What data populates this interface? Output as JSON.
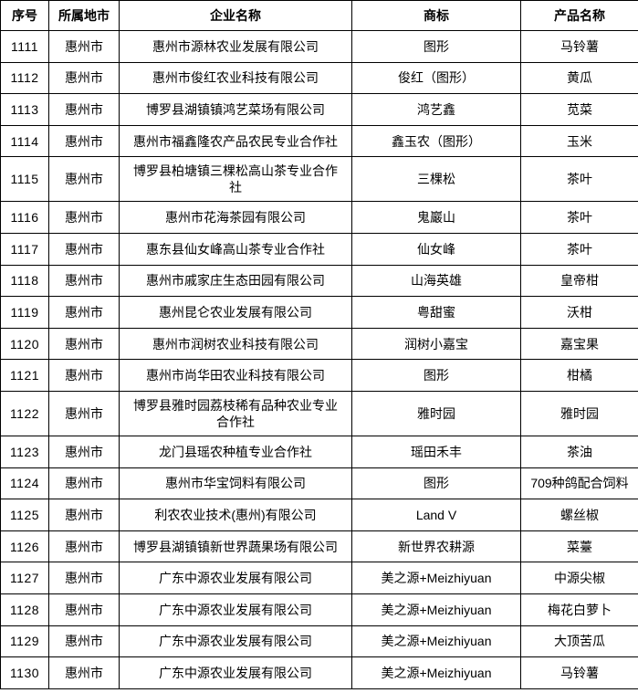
{
  "table": {
    "columns": [
      {
        "key": "no",
        "label": "序号"
      },
      {
        "key": "city",
        "label": "所属地市"
      },
      {
        "key": "company",
        "label": "企业名称"
      },
      {
        "key": "trademark",
        "label": "商标"
      },
      {
        "key": "product",
        "label": "产品名称"
      }
    ],
    "rows": [
      {
        "no": "1111",
        "city": "惠州市",
        "company": "惠州市源林农业发展有限公司",
        "trademark": "图形",
        "product": "马铃薯"
      },
      {
        "no": "1112",
        "city": "惠州市",
        "company": "惠州市俊红农业科技有限公司",
        "trademark": "俊红（图形）",
        "product": "黄瓜"
      },
      {
        "no": "1113",
        "city": "惠州市",
        "company": "博罗县湖镇镇鸿艺菜场有限公司",
        "trademark": "鸿艺鑫",
        "product": "苋菜"
      },
      {
        "no": "1114",
        "city": "惠州市",
        "company": "惠州市福鑫隆农产品农民专业合作社",
        "trademark": "鑫玉农（图形）",
        "product": "玉米"
      },
      {
        "no": "1115",
        "city": "惠州市",
        "company": "博罗县柏塘镇三棵松高山茶专业合作社",
        "trademark": "三棵松",
        "product": "茶叶"
      },
      {
        "no": "1116",
        "city": "惠州市",
        "company": "惠州市花海茶园有限公司",
        "trademark": "鬼巖山",
        "product": "茶叶"
      },
      {
        "no": "1117",
        "city": "惠州市",
        "company": "惠东县仙女峰高山茶专业合作社",
        "trademark": "仙女峰",
        "product": "茶叶"
      },
      {
        "no": "1118",
        "city": "惠州市",
        "company": "惠州市戚家庄生态田园有限公司",
        "trademark": "山海英雄",
        "product": "皇帝柑"
      },
      {
        "no": "1119",
        "city": "惠州市",
        "company": "惠州昆仑农业发展有限公司",
        "trademark": "粤甜蜜",
        "product": "沃柑"
      },
      {
        "no": "1120",
        "city": "惠州市",
        "company": "惠州市润树农业科技有限公司",
        "trademark": "润树小嘉宝",
        "product": "嘉宝果"
      },
      {
        "no": "1121",
        "city": "惠州市",
        "company": "惠州市尚华田农业科技有限公司",
        "trademark": "图形",
        "product": "柑橘"
      },
      {
        "no": "1122",
        "city": "惠州市",
        "company": "博罗县雅时园荔枝稀有品种农业专业合作社",
        "trademark": "雅时园",
        "product": "雅时园"
      },
      {
        "no": "1123",
        "city": "惠州市",
        "company": "龙门县瑶农种植专业合作社",
        "trademark": "瑶田禾丰",
        "product": "茶油"
      },
      {
        "no": "1124",
        "city": "惠州市",
        "company": "惠州市华宝饲料有限公司",
        "trademark": "图形",
        "product": "709种鸽配合饲料"
      },
      {
        "no": "1125",
        "city": "惠州市",
        "company": "利农农业技术(惠州)有限公司",
        "trademark": "Land V",
        "product": "螺丝椒"
      },
      {
        "no": "1126",
        "city": "惠州市",
        "company": "博罗县湖镇镇新世界蔬果场有限公司",
        "trademark": "新世界农耕源",
        "product": "菜薹"
      },
      {
        "no": "1127",
        "city": "惠州市",
        "company": "广东中源农业发展有限公司",
        "trademark": "美之源+Meizhiyuan",
        "product": "中源尖椒"
      },
      {
        "no": "1128",
        "city": "惠州市",
        "company": "广东中源农业发展有限公司",
        "trademark": "美之源+Meizhiyuan",
        "product": "梅花白萝卜"
      },
      {
        "no": "1129",
        "city": "惠州市",
        "company": "广东中源农业发展有限公司",
        "trademark": "美之源+Meizhiyuan",
        "product": "大顶苦瓜"
      },
      {
        "no": "1130",
        "city": "惠州市",
        "company": "广东中源农业发展有限公司",
        "trademark": "美之源+Meizhiyuan",
        "product": "马铃薯"
      }
    ]
  },
  "colors": {
    "border": "#000000",
    "text": "#000000",
    "background": "#ffffff"
  }
}
